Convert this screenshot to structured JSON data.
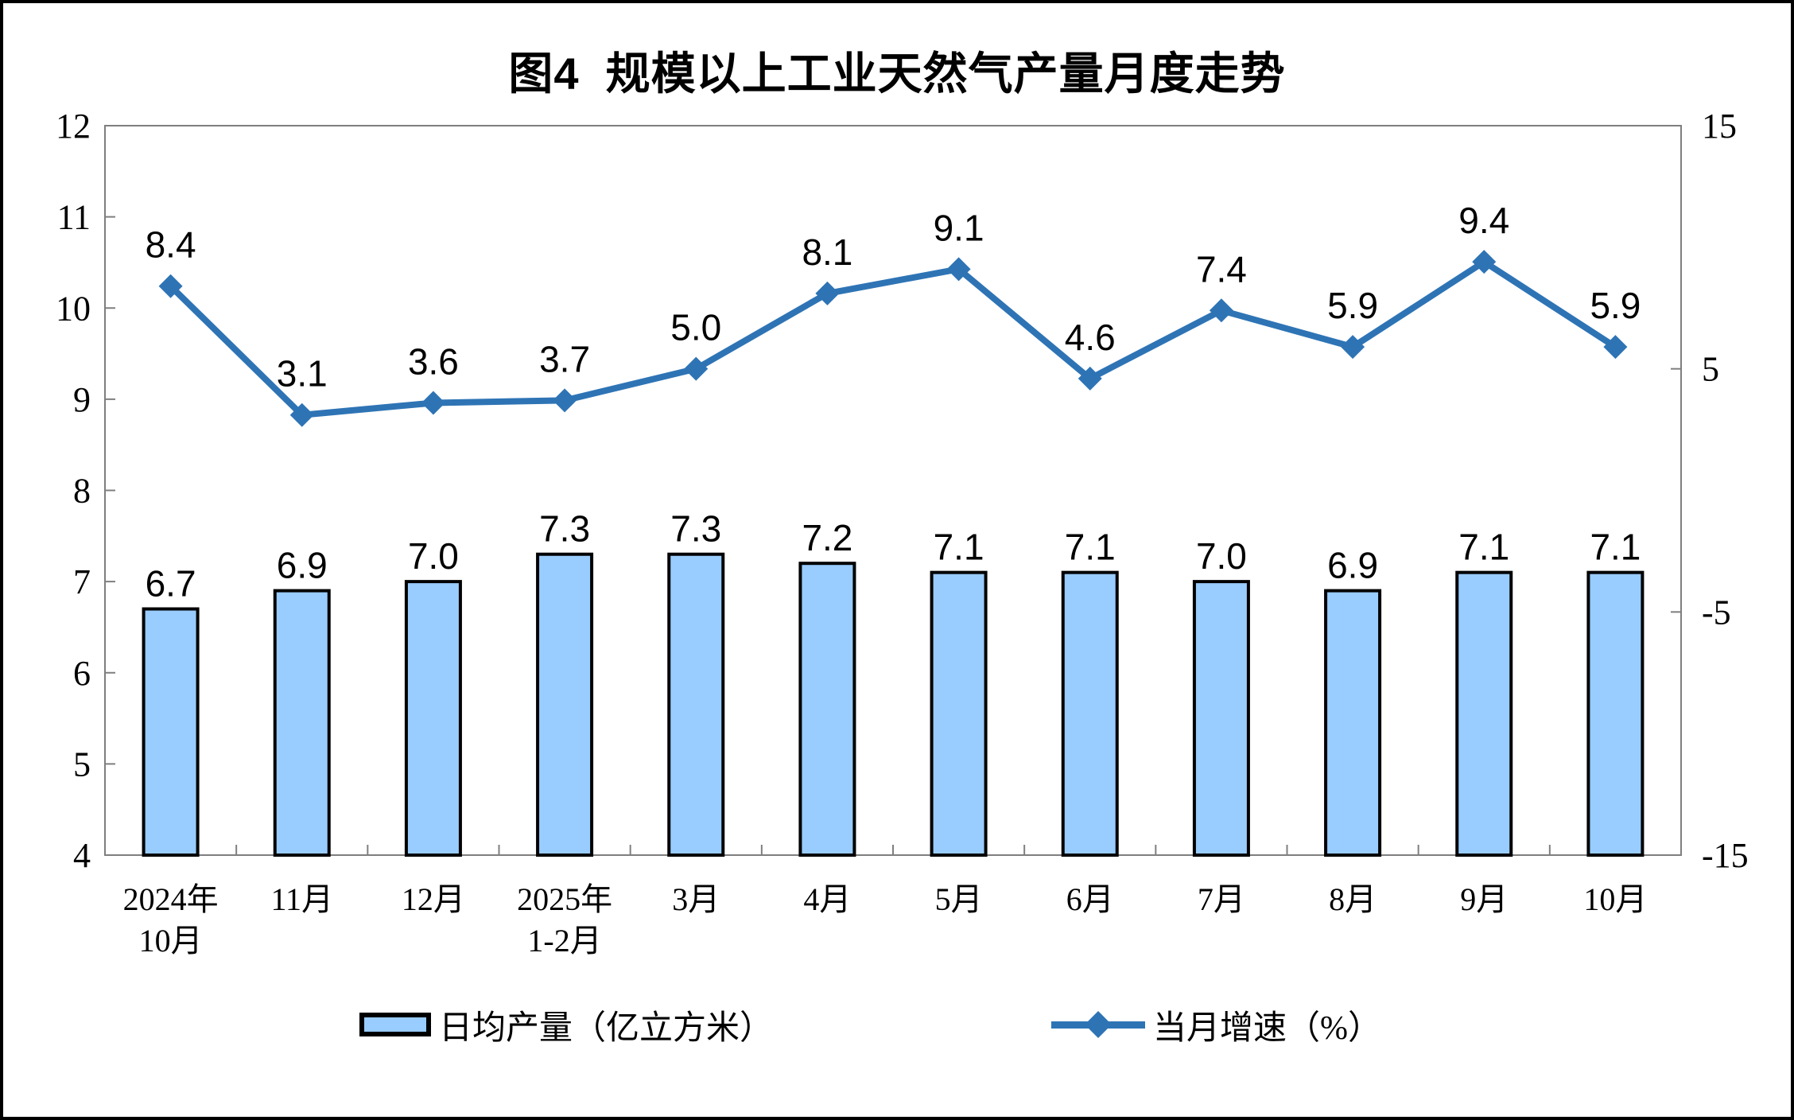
{
  "figure": {
    "title": "图4  规模以上工业天然气产量月度走势"
  },
  "chart_data": {
    "type": "bar+line combo",
    "title": "图4  规模以上工业天然气产量月度走势",
    "categories": [
      [
        "2024年",
        "10月"
      ],
      [
        "11月"
      ],
      [
        "12月"
      ],
      [
        "2025年",
        "1-2月"
      ],
      [
        "3月"
      ],
      [
        "4月"
      ],
      [
        "5月"
      ],
      [
        "6月"
      ],
      [
        "7月"
      ],
      [
        "8月"
      ],
      [
        "9月"
      ],
      [
        "10月"
      ]
    ],
    "series": [
      {
        "name": "日均产量（亿立方米）",
        "type": "bar",
        "axis": "left",
        "values": [
          6.7,
          6.9,
          7.0,
          7.3,
          7.3,
          7.2,
          7.1,
          7.1,
          7.0,
          6.9,
          7.1,
          7.1
        ],
        "fill_color": "#99CCFF",
        "border_color": "#000000"
      },
      {
        "name": "当月增速（%）",
        "type": "line",
        "axis": "right",
        "values": [
          8.4,
          3.1,
          3.6,
          3.7,
          5.0,
          8.1,
          9.1,
          4.6,
          7.4,
          5.9,
          9.4,
          5.9
        ],
        "color": "#2E74B5",
        "marker": "diamond"
      }
    ],
    "left_axis": {
      "min": 4,
      "max": 12,
      "ticks": [
        4,
        5,
        6,
        7,
        8,
        9,
        10,
        11,
        12
      ]
    },
    "right_axis": {
      "min": -15,
      "max": 15,
      "ticks": [
        -15,
        -5,
        5,
        15
      ]
    },
    "grid": false,
    "frame_color": "#7F7F7F",
    "legend_position": "bottom",
    "value_labels": true
  }
}
